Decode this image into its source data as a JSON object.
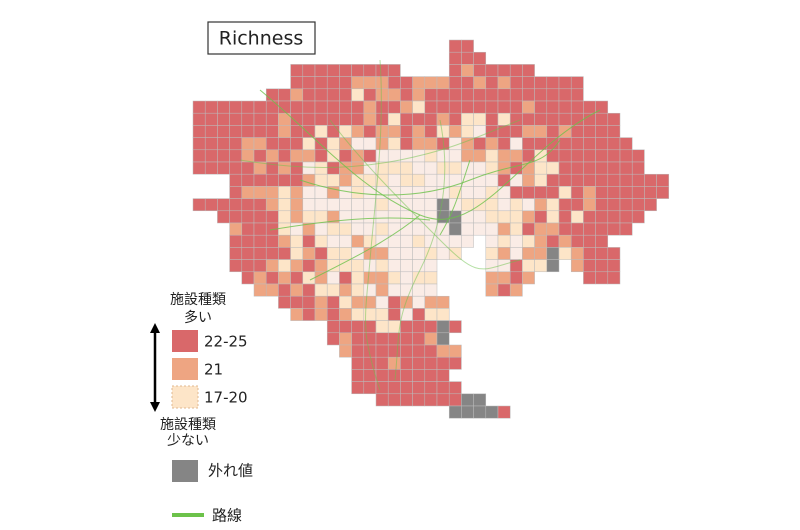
{
  "title": "Richness",
  "legend": {
    "top_label": [
      "施設種類",
      "多い"
    ],
    "items": [
      {
        "label": "22-25",
        "color": "#d9686a"
      },
      {
        "label": "21",
        "color": "#eea582"
      },
      {
        "label": "17-20",
        "color": "#fde5c8"
      }
    ],
    "bottom_label": [
      "施設種類",
      "少ない"
    ],
    "outlier": {
      "label": "外れ値",
      "color": "#858585"
    },
    "route": {
      "label": "路線",
      "color": "#6cc24a"
    }
  }
}
